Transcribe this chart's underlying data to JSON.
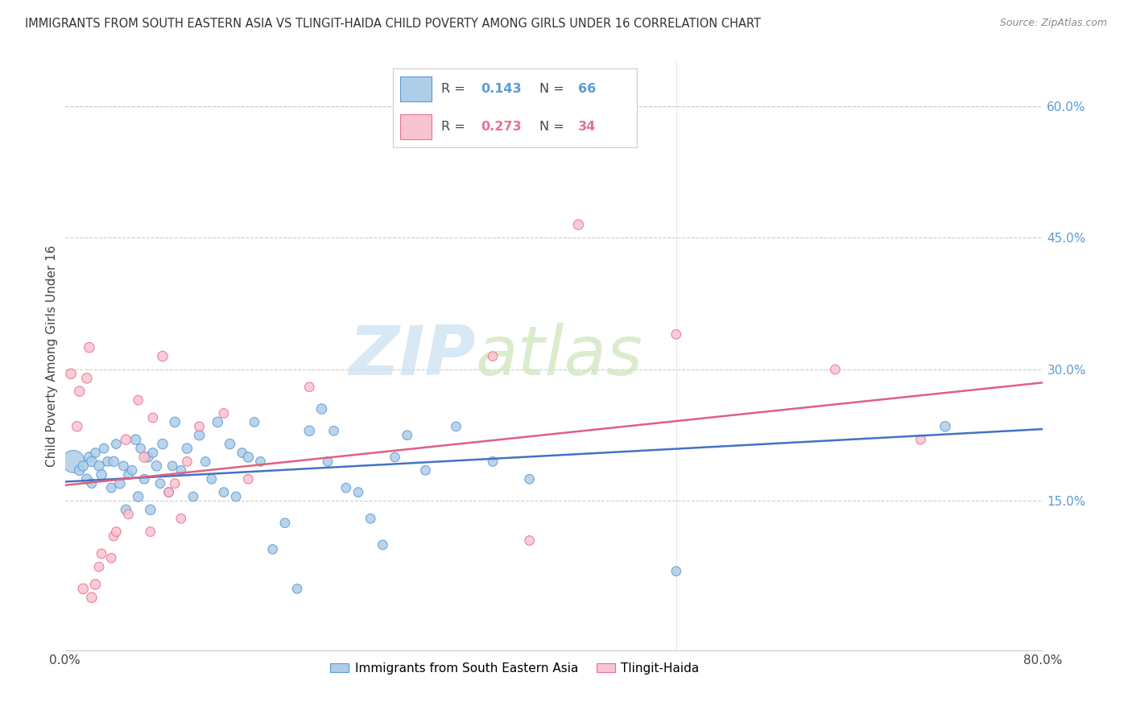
{
  "title": "IMMIGRANTS FROM SOUTH EASTERN ASIA VS TLINGIT-HAIDA CHILD POVERTY AMONG GIRLS UNDER 16 CORRELATION CHART",
  "source": "Source: ZipAtlas.com",
  "ylabel": "Child Poverty Among Girls Under 16",
  "xlim": [
    0.0,
    0.8
  ],
  "ylim": [
    -0.02,
    0.65
  ],
  "xticks": [
    0.0,
    0.1,
    0.2,
    0.3,
    0.4,
    0.5,
    0.6,
    0.7,
    0.8
  ],
  "xticklabels": [
    "0.0%",
    "",
    "",
    "",
    "",
    "",
    "",
    "",
    "80.0%"
  ],
  "yticks_right": [
    0.15,
    0.3,
    0.45,
    0.6
  ],
  "ytick_right_labels": [
    "15.0%",
    "30.0%",
    "45.0%",
    "60.0%"
  ],
  "blue_R": 0.143,
  "blue_N": 66,
  "pink_R": 0.273,
  "pink_N": 34,
  "blue_fill": "#aecde8",
  "pink_fill": "#f9c4d2",
  "blue_edge": "#5b9bd5",
  "pink_edge": "#e8718d",
  "blue_label": "Immigrants from South Eastern Asia",
  "pink_label": "Tlingit-Haida",
  "blue_trend": "#4472c4",
  "pink_trend": "#e06080",
  "watermark_zip": "#c5dff0",
  "watermark_atlas": "#d0e8c0",
  "background_color": "#ffffff",
  "blue_scatter_x": [
    0.007,
    0.012,
    0.015,
    0.018,
    0.02,
    0.022,
    0.022,
    0.025,
    0.028,
    0.03,
    0.032,
    0.035,
    0.038,
    0.04,
    0.042,
    0.045,
    0.048,
    0.05,
    0.052,
    0.055,
    0.058,
    0.06,
    0.062,
    0.065,
    0.068,
    0.07,
    0.072,
    0.075,
    0.078,
    0.08,
    0.085,
    0.088,
    0.09,
    0.095,
    0.1,
    0.105,
    0.11,
    0.115,
    0.12,
    0.125,
    0.13,
    0.135,
    0.14,
    0.145,
    0.15,
    0.155,
    0.16,
    0.17,
    0.18,
    0.19,
    0.2,
    0.21,
    0.215,
    0.22,
    0.23,
    0.24,
    0.25,
    0.26,
    0.27,
    0.28,
    0.295,
    0.32,
    0.35,
    0.38,
    0.5,
    0.72
  ],
  "blue_scatter_y": [
    0.195,
    0.185,
    0.19,
    0.175,
    0.2,
    0.195,
    0.17,
    0.205,
    0.19,
    0.18,
    0.21,
    0.195,
    0.165,
    0.195,
    0.215,
    0.17,
    0.19,
    0.14,
    0.18,
    0.185,
    0.22,
    0.155,
    0.21,
    0.175,
    0.2,
    0.14,
    0.205,
    0.19,
    0.17,
    0.215,
    0.16,
    0.19,
    0.24,
    0.185,
    0.21,
    0.155,
    0.225,
    0.195,
    0.175,
    0.24,
    0.16,
    0.215,
    0.155,
    0.205,
    0.2,
    0.24,
    0.195,
    0.095,
    0.125,
    0.05,
    0.23,
    0.255,
    0.195,
    0.23,
    0.165,
    0.16,
    0.13,
    0.1,
    0.2,
    0.225,
    0.185,
    0.235,
    0.195,
    0.175,
    0.07,
    0.235
  ],
  "blue_scatter_size": [
    400,
    80,
    80,
    80,
    80,
    80,
    70,
    70,
    80,
    80,
    70,
    70,
    70,
    80,
    70,
    80,
    70,
    80,
    70,
    70,
    80,
    80,
    70,
    70,
    80,
    80,
    70,
    80,
    70,
    80,
    70,
    70,
    80,
    70,
    80,
    70,
    80,
    70,
    70,
    80,
    70,
    80,
    70,
    70,
    80,
    70,
    70,
    70,
    70,
    70,
    80,
    80,
    70,
    70,
    70,
    70,
    70,
    70,
    70,
    70,
    70,
    70,
    70,
    70,
    70,
    80
  ],
  "pink_scatter_x": [
    0.005,
    0.01,
    0.012,
    0.015,
    0.018,
    0.02,
    0.022,
    0.025,
    0.028,
    0.03,
    0.038,
    0.04,
    0.042,
    0.05,
    0.052,
    0.06,
    0.065,
    0.07,
    0.072,
    0.08,
    0.085,
    0.09,
    0.095,
    0.1,
    0.11,
    0.13,
    0.15,
    0.2,
    0.35,
    0.38,
    0.42,
    0.5,
    0.63,
    0.7
  ],
  "pink_scatter_y": [
    0.295,
    0.235,
    0.275,
    0.05,
    0.29,
    0.325,
    0.04,
    0.055,
    0.075,
    0.09,
    0.085,
    0.11,
    0.115,
    0.22,
    0.135,
    0.265,
    0.2,
    0.115,
    0.245,
    0.315,
    0.16,
    0.17,
    0.13,
    0.195,
    0.235,
    0.25,
    0.175,
    0.28,
    0.315,
    0.105,
    0.465,
    0.34,
    0.3,
    0.22
  ],
  "pink_scatter_size": [
    80,
    80,
    80,
    80,
    80,
    80,
    80,
    80,
    70,
    70,
    70,
    70,
    70,
    80,
    70,
    70,
    80,
    70,
    70,
    80,
    70,
    70,
    70,
    70,
    70,
    70,
    70,
    70,
    70,
    70,
    80,
    70,
    70,
    70
  ],
  "blue_trend_y_start": 0.172,
  "blue_trend_y_end": 0.232,
  "pink_trend_y_start": 0.168,
  "pink_trend_y_end": 0.285
}
